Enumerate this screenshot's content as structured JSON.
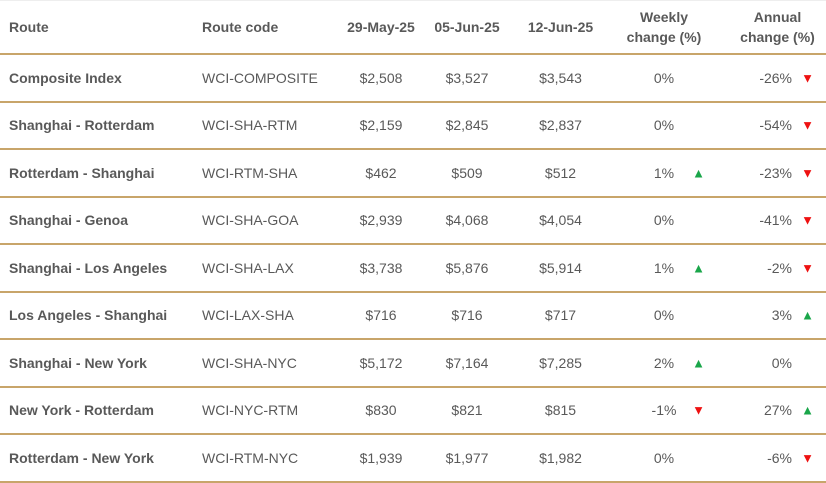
{
  "colors": {
    "border": "#c8a56a",
    "up": "#1aa64a",
    "down": "#ee1111",
    "text": "#595959"
  },
  "headers": [
    "Route",
    "Route code",
    "29-May-25",
    "05-Jun-25",
    "12-Jun-25",
    "Weekly change (%)",
    "Annual change (%)"
  ],
  "rows": [
    {
      "route": "Composite Index",
      "code": "WCI-COMPOSITE",
      "d1": "$2,508",
      "d2": "$3,527",
      "d3": "$3,543",
      "weekly": "0%",
      "weekly_dir": "",
      "annual": "-26%",
      "annual_dir": "down"
    },
    {
      "route": "Shanghai - Rotterdam",
      "code": "WCI-SHA-RTM",
      "d1": "$2,159",
      "d2": "$2,845",
      "d3": "$2,837",
      "weekly": "0%",
      "weekly_dir": "",
      "annual": "-54%",
      "annual_dir": "down"
    },
    {
      "route": "Rotterdam - Shanghai",
      "code": "WCI-RTM-SHA",
      "d1": "$462",
      "d2": "$509",
      "d3": "$512",
      "weekly": "1%",
      "weekly_dir": "up",
      "annual": "-23%",
      "annual_dir": "down"
    },
    {
      "route": "Shanghai - Genoa",
      "code": "WCI-SHA-GOA",
      "d1": "$2,939",
      "d2": "$4,068",
      "d3": "$4,054",
      "weekly": "0%",
      "weekly_dir": "",
      "annual": "-41%",
      "annual_dir": "down"
    },
    {
      "route": "Shanghai - Los Angeles",
      "code": "WCI-SHA-LAX",
      "d1": "$3,738",
      "d2": "$5,876",
      "d3": "$5,914",
      "weekly": "1%",
      "weekly_dir": "up",
      "annual": "-2%",
      "annual_dir": "down"
    },
    {
      "route": "Los Angeles - Shanghai",
      "code": "WCI-LAX-SHA",
      "d1": "$716",
      "d2": "$716",
      "d3": "$717",
      "weekly": "0%",
      "weekly_dir": "",
      "annual": "3%",
      "annual_dir": "up"
    },
    {
      "route": "Shanghai - New York",
      "code": "WCI-SHA-NYC",
      "d1": "$5,172",
      "d2": "$7,164",
      "d3": "$7,285",
      "weekly": "2%",
      "weekly_dir": "up",
      "annual": "0%",
      "annual_dir": ""
    },
    {
      "route": "New York - Rotterdam",
      "code": "WCI-NYC-RTM",
      "d1": "$830",
      "d2": "$821",
      "d3": "$815",
      "weekly": "-1%",
      "weekly_dir": "down",
      "annual": "27%",
      "annual_dir": "up"
    },
    {
      "route": "Rotterdam - New York",
      "code": "WCI-RTM-NYC",
      "d1": "$1,939",
      "d2": "$1,977",
      "d3": "$1,982",
      "weekly": "0%",
      "weekly_dir": "",
      "annual": "-6%",
      "annual_dir": "down"
    }
  ]
}
